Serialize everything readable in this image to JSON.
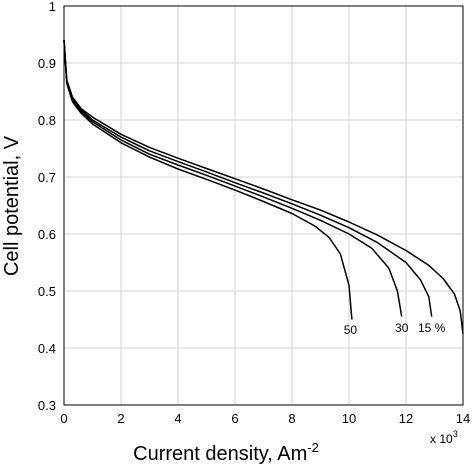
{
  "chart_data": {
    "type": "line",
    "xlabel": "Current density, Am",
    "xlabel_sup": "-2",
    "ylabel": "Cell potential, V",
    "x_multiplier": "x 10",
    "x_multiplier_sup": "3",
    "xlim": [
      0,
      14
    ],
    "ylim": [
      0.3,
      1.0
    ],
    "x_ticks": [
      "0",
      "2",
      "4",
      "6",
      "8",
      "10",
      "12",
      "14"
    ],
    "y_ticks": [
      "0.3",
      "0.4",
      "0.5",
      "0.6",
      "0.7",
      "0.8",
      "0.9",
      "1"
    ],
    "grid": true,
    "series": [
      {
        "name": "15 %",
        "x": [
          0.0,
          0.1,
          0.3,
          0.6,
          1.0,
          2.0,
          3.0,
          4.0,
          5.0,
          6.0,
          7.0,
          8.0,
          9.0,
          10.0,
          11.0,
          12.0,
          12.8,
          13.3,
          13.7,
          13.9,
          14.0
        ],
        "y": [
          0.94,
          0.87,
          0.84,
          0.82,
          0.805,
          0.775,
          0.752,
          0.733,
          0.715,
          0.697,
          0.679,
          0.66,
          0.642,
          0.621,
          0.598,
          0.571,
          0.545,
          0.522,
          0.495,
          0.465,
          0.425
        ]
      },
      {
        "name": "30",
        "x": [
          0.0,
          0.1,
          0.3,
          0.6,
          1.0,
          2.0,
          3.0,
          4.0,
          5.0,
          6.0,
          7.0,
          8.0,
          9.0,
          10.0,
          11.0,
          12.0,
          12.5,
          12.8,
          12.9
        ],
        "y": [
          0.94,
          0.868,
          0.838,
          0.818,
          0.8,
          0.77,
          0.746,
          0.727,
          0.709,
          0.69,
          0.672,
          0.653,
          0.633,
          0.611,
          0.585,
          0.55,
          0.52,
          0.49,
          0.455
        ]
      },
      {
        "name": "50",
        "x": [
          0.0,
          0.1,
          0.3,
          0.6,
          1.0,
          2.0,
          3.0,
          4.0,
          5.0,
          6.0,
          7.0,
          8.0,
          9.0,
          10.0,
          10.8,
          11.4,
          11.7,
          11.85
        ],
        "y": [
          0.94,
          0.866,
          0.835,
          0.815,
          0.797,
          0.765,
          0.74,
          0.721,
          0.703,
          0.684,
          0.665,
          0.645,
          0.624,
          0.6,
          0.575,
          0.54,
          0.5,
          0.455
        ]
      },
      {
        "name": "",
        "x": [
          0.0,
          0.1,
          0.3,
          0.6,
          1.0,
          2.0,
          3.0,
          4.0,
          5.0,
          6.0,
          7.0,
          8.0,
          8.8,
          9.3,
          9.7,
          10.0,
          10.1
        ],
        "y": [
          0.94,
          0.864,
          0.832,
          0.812,
          0.793,
          0.76,
          0.735,
          0.714,
          0.696,
          0.677,
          0.657,
          0.636,
          0.614,
          0.594,
          0.565,
          0.51,
          0.45
        ]
      }
    ],
    "annotations": [
      {
        "text": "50",
        "x": 10.05,
        "y": 0.425
      },
      {
        "text": "30",
        "x": 11.85,
        "y": 0.428
      },
      {
        "text": "15 %",
        "x": 12.9,
        "y": 0.428
      }
    ]
  }
}
